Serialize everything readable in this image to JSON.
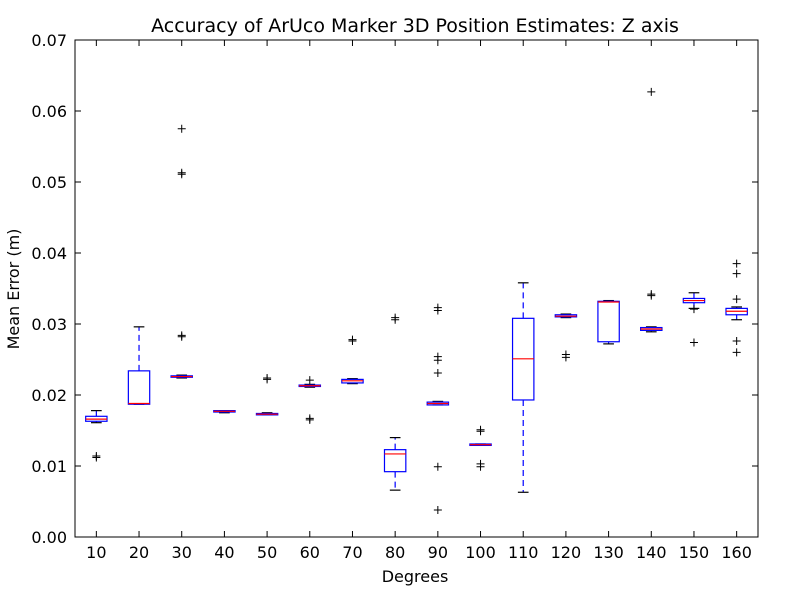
{
  "chart_data": {
    "type": "box",
    "title": "Accuracy of ArUco Marker 3D Position Estimates: Z axis",
    "xlabel": "Degrees",
    "ylabel": "Mean Error (m)",
    "ylim": [
      0,
      0.07
    ],
    "yticks": [
      "0.00",
      "0.01",
      "0.02",
      "0.03",
      "0.04",
      "0.05",
      "0.06",
      "0.07"
    ],
    "grid": false,
    "categories": [
      "10",
      "20",
      "30",
      "40",
      "50",
      "60",
      "70",
      "80",
      "90",
      "100",
      "110",
      "120",
      "130",
      "140",
      "150",
      "160"
    ],
    "boxes": [
      {
        "whislo": 0.0161,
        "q1": 0.0163,
        "med": 0.0166,
        "q3": 0.017,
        "whishi": 0.0178,
        "fliers": [
          0.0112,
          0.0114
        ]
      },
      {
        "whislo": 0.0187,
        "q1": 0.0187,
        "med": 0.0188,
        "q3": 0.0234,
        "whishi": 0.0296,
        "fliers": []
      },
      {
        "whislo": 0.0224,
        "q1": 0.0225,
        "med": 0.0226,
        "q3": 0.0227,
        "whishi": 0.0228,
        "fliers": [
          0.0282,
          0.0284,
          0.0511,
          0.0513,
          0.0575
        ]
      },
      {
        "whislo": 0.0175,
        "q1": 0.0176,
        "med": 0.0177,
        "q3": 0.0178,
        "whishi": 0.0178,
        "fliers": []
      },
      {
        "whislo": 0.0172,
        "q1": 0.0172,
        "med": 0.0173,
        "q3": 0.0174,
        "whishi": 0.0175,
        "fliers": [
          0.0222,
          0.0224
        ]
      },
      {
        "whislo": 0.0211,
        "q1": 0.0212,
        "med": 0.0213,
        "q3": 0.0214,
        "whishi": 0.0215,
        "fliers": [
          0.0165,
          0.0167,
          0.0221
        ]
      },
      {
        "whislo": 0.0216,
        "q1": 0.0217,
        "med": 0.022,
        "q3": 0.0222,
        "whishi": 0.0223,
        "fliers": [
          0.0276,
          0.0278
        ]
      },
      {
        "whislo": 0.0066,
        "q1": 0.0092,
        "med": 0.0117,
        "q3": 0.0123,
        "whishi": 0.014,
        "fliers": [
          0.0306,
          0.0309
        ]
      },
      {
        "whislo": 0.0186,
        "q1": 0.0186,
        "med": 0.0188,
        "q3": 0.019,
        "whishi": 0.0191,
        "fliers": [
          0.0038,
          0.0099,
          0.0231,
          0.0249,
          0.0254,
          0.0319,
          0.0323
        ]
      },
      {
        "whislo": 0.0129,
        "q1": 0.0129,
        "med": 0.013,
        "q3": 0.0131,
        "whishi": 0.0131,
        "fliers": [
          0.0099,
          0.0103,
          0.0149,
          0.0151
        ]
      },
      {
        "whislo": 0.0063,
        "q1": 0.0193,
        "med": 0.0251,
        "q3": 0.0308,
        "whishi": 0.0358,
        "fliers": []
      },
      {
        "whislo": 0.0309,
        "q1": 0.031,
        "med": 0.0311,
        "q3": 0.0313,
        "whishi": 0.0314,
        "fliers": [
          0.0253,
          0.0257
        ]
      },
      {
        "whislo": 0.0272,
        "q1": 0.0275,
        "med": 0.0331,
        "q3": 0.0332,
        "whishi": 0.0333,
        "fliers": []
      },
      {
        "whislo": 0.0289,
        "q1": 0.0291,
        "med": 0.0293,
        "q3": 0.0295,
        "whishi": 0.0296,
        "fliers": [
          0.034,
          0.0342,
          0.0627
        ]
      },
      {
        "whislo": 0.0322,
        "q1": 0.033,
        "med": 0.0333,
        "q3": 0.0336,
        "whishi": 0.0344,
        "fliers": [
          0.0274,
          0.0321
        ]
      },
      {
        "whislo": 0.0306,
        "q1": 0.0313,
        "med": 0.0318,
        "q3": 0.0322,
        "whishi": 0.0324,
        "fliers": [
          0.026,
          0.0276,
          0.0335,
          0.0371,
          0.0385
        ]
      }
    ],
    "colors": {
      "box": "#0000ff",
      "median": "#ff0000",
      "whisker": "#0000ff",
      "cap": "#000000",
      "flier": "#000000"
    }
  }
}
